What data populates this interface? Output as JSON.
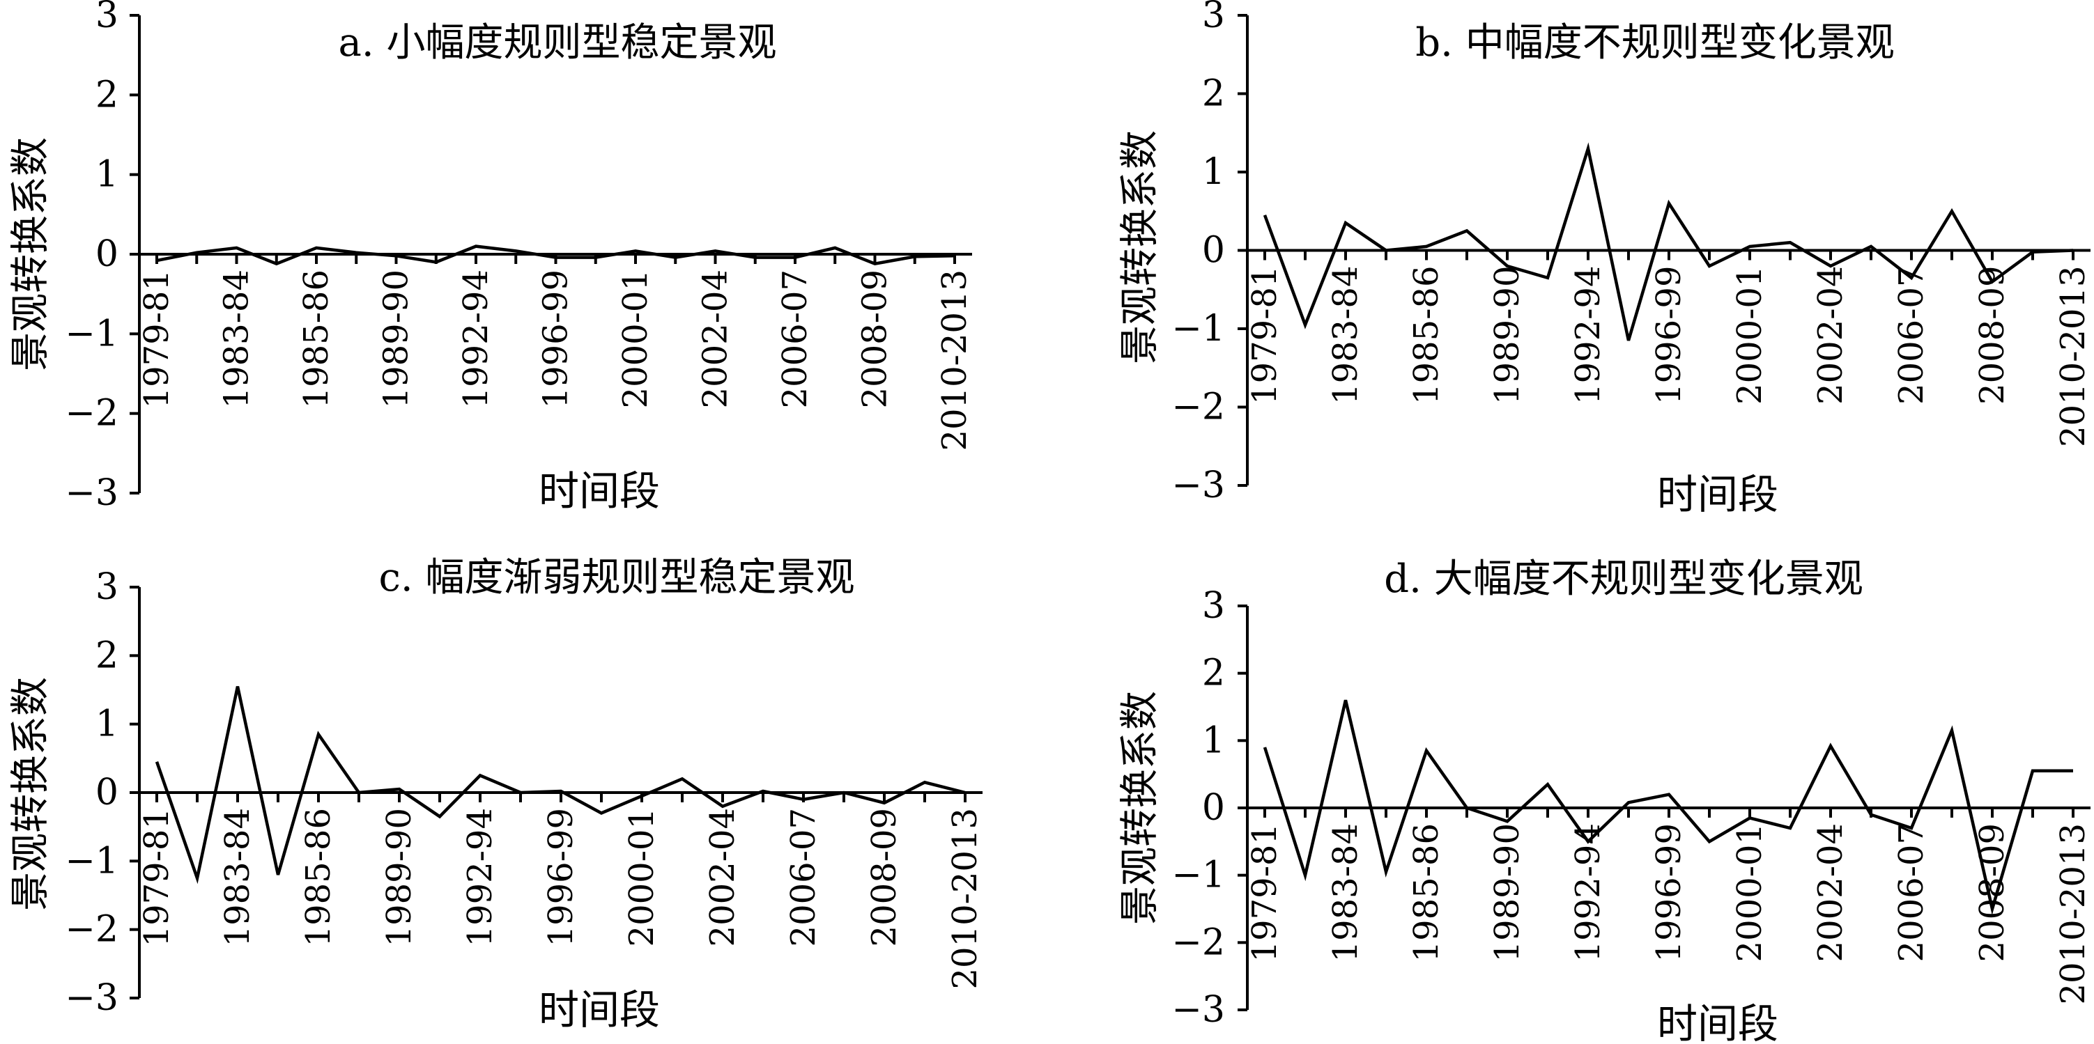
{
  "figure": {
    "y_axis_label": "景观转换系数",
    "x_axis_label": "时间段"
  },
  "chart_data": [
    {
      "type": "line",
      "title": "a. 小幅度规则型稳定景观",
      "xlabel": "时间段",
      "ylabel": "景观转换系数",
      "ylim": [
        -3,
        3
      ],
      "yticks": [
        3,
        2,
        1,
        0,
        -1,
        -2,
        -3
      ],
      "ytick_labels": [
        "3",
        "2",
        "1",
        "0",
        "−1",
        "−2",
        "−3"
      ],
      "xtick_labels": [
        "1979-81",
        "1983-84",
        "1985-86",
        "1989-90",
        "1992-94",
        "1996-99",
        "2000-01",
        "2002-04",
        "2006-07",
        "2008-09",
        "2010-2013"
      ],
      "xtick_index": [
        0,
        2,
        4,
        6,
        8,
        10,
        12,
        14,
        16,
        18,
        20
      ],
      "x": [
        0,
        1,
        2,
        3,
        4,
        5,
        6,
        7,
        8,
        9,
        10,
        11,
        12,
        13,
        14,
        15,
        16,
        17,
        18,
        19,
        20
      ],
      "values": [
        -0.08,
        0.02,
        0.08,
        -0.12,
        0.08,
        0.02,
        -0.02,
        -0.1,
        0.1,
        0.04,
        -0.04,
        -0.04,
        0.04,
        -0.04,
        0.04,
        -0.04,
        -0.04,
        0.08,
        -0.12,
        -0.03,
        -0.02
      ]
    },
    {
      "type": "line",
      "title": "b. 中幅度不规则型变化景观",
      "xlabel": "时间段",
      "ylabel": "景观转换系数",
      "ylim": [
        -3,
        3
      ],
      "yticks": [
        3,
        2,
        1,
        0,
        -1,
        -2,
        -3
      ],
      "ytick_labels": [
        "3",
        "2",
        "1",
        "0",
        "−1",
        "−2",
        "−3"
      ],
      "xtick_labels": [
        "1979-81",
        "1983-84",
        "1985-86",
        "1989-90",
        "1992-94",
        "1996-99",
        "2000-01",
        "2002-04",
        "2006-07",
        "2008-09",
        "2010-2013"
      ],
      "xtick_index": [
        0,
        2,
        4,
        6,
        8,
        10,
        12,
        14,
        16,
        18,
        20
      ],
      "x": [
        0,
        1,
        2,
        3,
        4,
        5,
        6,
        7,
        8,
        9,
        10,
        11,
        12,
        13,
        14,
        15,
        16,
        17,
        18,
        19,
        20
      ],
      "values": [
        0.45,
        -0.95,
        0.35,
        0.0,
        0.05,
        0.25,
        -0.2,
        -0.35,
        1.3,
        -1.15,
        0.6,
        -0.2,
        0.05,
        0.1,
        -0.2,
        0.05,
        -0.35,
        0.5,
        -0.4,
        -0.02,
        0.0
      ]
    },
    {
      "type": "line",
      "title": "c. 幅度渐弱规则型稳定景观",
      "xlabel": "时间段",
      "ylabel": "景观转换系数",
      "ylim": [
        -3,
        3
      ],
      "yticks": [
        3,
        2,
        1,
        0,
        -1,
        -2,
        -3
      ],
      "ytick_labels": [
        "3",
        "2",
        "1",
        "0",
        "−1",
        "−2",
        "−3"
      ],
      "xtick_labels": [
        "1979-81",
        "1983-84",
        "1985-86",
        "1989-90",
        "1992-94",
        "1996-99",
        "2000-01",
        "2002-04",
        "2006-07",
        "2008-09",
        "2010-2013"
      ],
      "xtick_index": [
        0,
        2,
        4,
        6,
        8,
        10,
        12,
        14,
        16,
        18,
        20
      ],
      "x": [
        0,
        1,
        2,
        3,
        4,
        5,
        6,
        7,
        8,
        9,
        10,
        11,
        12,
        13,
        14,
        15,
        16,
        17,
        18,
        19,
        20
      ],
      "values": [
        0.45,
        -1.25,
        1.55,
        -1.2,
        0.85,
        0.0,
        0.05,
        -0.35,
        0.25,
        0.0,
        0.02,
        -0.3,
        -0.05,
        0.2,
        -0.2,
        0.02,
        -0.1,
        0.0,
        -0.15,
        0.15,
        0.0
      ]
    },
    {
      "type": "line",
      "title": "d. 大幅度不规则型变化景观",
      "xlabel": "时间段",
      "ylabel": "景观转换系数",
      "ylim": [
        -3,
        3
      ],
      "yticks": [
        3,
        2,
        1,
        0,
        -1,
        -2,
        -3
      ],
      "ytick_labels": [
        "3",
        "2",
        "1",
        "0",
        "−1",
        "−2",
        "−3"
      ],
      "xtick_labels": [
        "1979-81",
        "1983-84",
        "1985-86",
        "1989-90",
        "1992-94",
        "1996-99",
        "2000-01",
        "2002-04",
        "2006-07",
        "2008-09",
        "2010-2013"
      ],
      "xtick_index": [
        0,
        2,
        4,
        6,
        8,
        10,
        12,
        14,
        16,
        18,
        20
      ],
      "x": [
        0,
        1,
        2,
        3,
        4,
        5,
        6,
        7,
        8,
        9,
        10,
        11,
        12,
        13,
        14,
        15,
        16,
        17,
        18,
        19,
        20
      ],
      "values": [
        0.9,
        -1.0,
        1.6,
        -0.95,
        0.85,
        0.0,
        -0.2,
        0.35,
        -0.5,
        0.08,
        0.2,
        -0.5,
        -0.15,
        -0.3,
        0.92,
        -0.1,
        -0.3,
        1.15,
        -1.5,
        0.55,
        0.55
      ]
    }
  ]
}
